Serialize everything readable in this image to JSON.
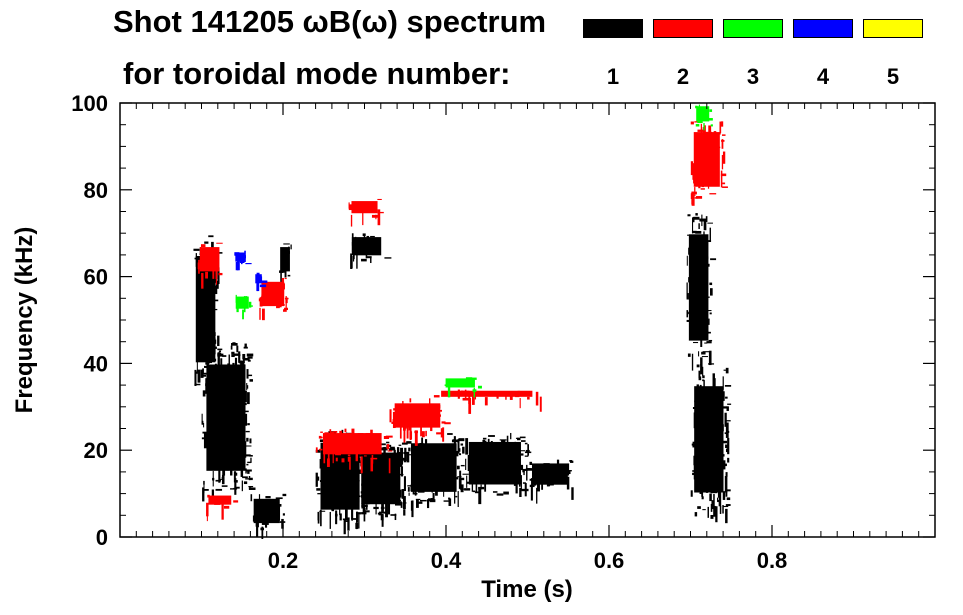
{
  "chart_data": {
    "type": "heatmap",
    "title_line1": "Shot 141205 ωB(ω) spectrum",
    "title_line2": "for toroidal mode number:",
    "xlabel": "Time (s)",
    "ylabel": "Frequency (kHz)",
    "xlim": [
      0.0,
      1.0
    ],
    "ylim": [
      0,
      100
    ],
    "x_ticks": [
      0.2,
      0.4,
      0.6,
      0.8
    ],
    "x_tick_labels": [
      "0.2",
      "0.4",
      "0.6",
      "0.8"
    ],
    "y_ticks": [
      0,
      20,
      40,
      60,
      80,
      100
    ],
    "y_tick_labels": [
      "0",
      "20",
      "40",
      "60",
      "80",
      "100"
    ],
    "legend_position": "top-right",
    "series": [
      {
        "name": "1",
        "color": "#000000",
        "regions": [
          {
            "t": [
              0.09,
              0.12
            ],
            "f": [
              35,
              70
            ]
          },
          {
            "t": [
              0.1,
              0.16
            ],
            "f": [
              10,
              45
            ]
          },
          {
            "t": [
              0.16,
              0.2
            ],
            "f": [
              2,
              10
            ]
          },
          {
            "t": [
              0.195,
              0.21
            ],
            "f": [
              60,
              68
            ]
          },
          {
            "t": [
              0.24,
              0.3
            ],
            "f": [
              3,
              25
            ]
          },
          {
            "t": [
              0.29,
              0.35
            ],
            "f": [
              5,
              22
            ]
          },
          {
            "t": [
              0.35,
              0.42
            ],
            "f": [
              8,
              24
            ]
          },
          {
            "t": [
              0.42,
              0.5
            ],
            "f": [
              10,
              24
            ]
          },
          {
            "t": [
              0.5,
              0.555
            ],
            "f": [
              11,
              18
            ]
          },
          {
            "t": [
              0.28,
              0.325
            ],
            "f": [
              64,
              70
            ]
          },
          {
            "t": [
              0.695,
              0.725
            ],
            "f": [
              40,
              75
            ]
          },
          {
            "t": [
              0.7,
              0.745
            ],
            "f": [
              5,
              40
            ]
          }
        ]
      },
      {
        "name": "2",
        "color": "#ff0000",
        "regions": [
          {
            "t": [
              0.095,
              0.125
            ],
            "f": [
              60,
              68
            ]
          },
          {
            "t": [
              0.17,
              0.205
            ],
            "f": [
              52,
              60
            ]
          },
          {
            "t": [
              0.24,
              0.33
            ],
            "f": [
              18,
              25
            ]
          },
          {
            "t": [
              0.33,
              0.4
            ],
            "f": [
              24,
              32
            ]
          },
          {
            "t": [
              0.38,
              0.52
            ],
            "f": [
              32,
              34
            ]
          },
          {
            "t": [
              0.28,
              0.32
            ],
            "f": [
              74,
              78
            ]
          },
          {
            "t": [
              0.7,
              0.74
            ],
            "f": [
              78,
              96
            ]
          },
          {
            "t": [
              0.105,
              0.14
            ],
            "f": [
              7,
              10
            ]
          }
        ]
      },
      {
        "name": "3",
        "color": "#00ff00",
        "regions": [
          {
            "t": [
              0.395,
              0.44
            ],
            "f": [
              34,
              37
            ]
          },
          {
            "t": [
              0.705,
              0.725
            ],
            "f": [
              95,
              100
            ]
          },
          {
            "t": [
              0.14,
              0.16
            ],
            "f": [
              52,
              56
            ]
          }
        ]
      },
      {
        "name": "4",
        "color": "#0000ff",
        "regions": [
          {
            "t": [
              0.165,
              0.175
            ],
            "f": [
              58,
              61
            ]
          },
          {
            "t": [
              0.14,
              0.155
            ],
            "f": [
              63,
              66
            ]
          }
        ]
      },
      {
        "name": "5",
        "color": "#ffff00",
        "regions": []
      }
    ]
  }
}
